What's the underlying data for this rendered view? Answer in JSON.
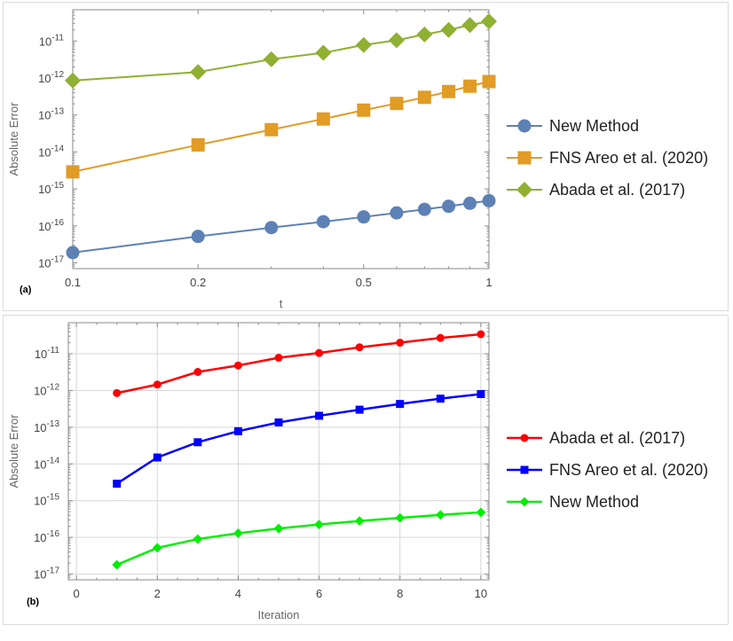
{
  "chart_data": [
    {
      "type": "line",
      "panel_label": "(a)",
      "xlabel": "t",
      "ylabel": "Absolute Error",
      "x_scale": "log",
      "y_scale": "log",
      "xlim": [
        0.1,
        1
      ],
      "ylim": [
        7e-18,
        7e-11
      ],
      "grid": false,
      "legend_position": "right",
      "x_ticks": [
        {
          "value": 0.1,
          "label": "0.1"
        },
        {
          "value": 0.2,
          "label": "0.2"
        },
        {
          "value": 0.5,
          "label": "0.5"
        },
        {
          "value": 1,
          "label": "1"
        }
      ],
      "y_ticks": [
        {
          "exp": -17,
          "base": "10",
          "sup": "-17"
        },
        {
          "exp": -16,
          "base": "10",
          "sup": "-16"
        },
        {
          "exp": -15,
          "base": "10",
          "sup": "-15"
        },
        {
          "exp": -14,
          "base": "10",
          "sup": "-14"
        },
        {
          "exp": -13,
          "base": "10",
          "sup": "-13"
        },
        {
          "exp": -12,
          "base": "10",
          "sup": "-12"
        },
        {
          "exp": -11,
          "base": "10",
          "sup": "-11"
        }
      ],
      "x": [
        0.1,
        0.2,
        0.3,
        0.4,
        0.5,
        0.6,
        0.7,
        0.8,
        0.9,
        1.0
      ],
      "series": [
        {
          "name": "New Method",
          "color": "#5e81b5",
          "marker": "circle",
          "values": [
            1.9e-17,
            5.2e-17,
            9e-17,
            1.3e-16,
            1.75e-16,
            2.25e-16,
            2.8e-16,
            3.4e-16,
            4.1e-16,
            4.8e-16
          ]
        },
        {
          "name": "FNS Areo et al. (2020)",
          "color": "#e19c24",
          "marker": "square",
          "values": [
            2.9e-15,
            1.55e-14,
            4e-14,
            7.8e-14,
            1.35e-13,
            2.05e-13,
            3e-13,
            4.3e-13,
            6e-13,
            8e-13
          ]
        },
        {
          "name": "Abada et al. (2017)",
          "color": "#8fb032",
          "marker": "diamond",
          "values": [
            8.5e-13,
            1.45e-12,
            3.2e-12,
            4.8e-12,
            7.8e-12,
            1.05e-11,
            1.5e-11,
            2e-11,
            2.7e-11,
            3.4e-11
          ]
        }
      ]
    },
    {
      "type": "line",
      "panel_label": "(b)",
      "xlabel": "Iteration",
      "ylabel": "Absolute Error",
      "x_scale": "linear",
      "y_scale": "log",
      "xlim": [
        -0.2,
        10.2
      ],
      "ylim": [
        7e-18,
        7e-11
      ],
      "grid": true,
      "legend_position": "right",
      "x_ticks": [
        {
          "value": 0,
          "label": "0"
        },
        {
          "value": 2,
          "label": "2"
        },
        {
          "value": 4,
          "label": "4"
        },
        {
          "value": 6,
          "label": "6"
        },
        {
          "value": 8,
          "label": "8"
        },
        {
          "value": 10,
          "label": "10"
        }
      ],
      "y_ticks": [
        {
          "exp": -17,
          "base": "10",
          "sup": "-17"
        },
        {
          "exp": -16,
          "base": "10",
          "sup": "-16"
        },
        {
          "exp": -15,
          "base": "10",
          "sup": "-15"
        },
        {
          "exp": -14,
          "base": "10",
          "sup": "-14"
        },
        {
          "exp": -13,
          "base": "10",
          "sup": "-13"
        },
        {
          "exp": -12,
          "base": "10",
          "sup": "-12"
        },
        {
          "exp": -11,
          "base": "10",
          "sup": "-11"
        }
      ],
      "x": [
        1,
        2,
        3,
        4,
        5,
        6,
        7,
        8,
        9,
        10
      ],
      "series": [
        {
          "name": "Abada et al. (2017)",
          "color": "#ff0000",
          "marker": "circle",
          "values": [
            8.5e-13,
            1.45e-12,
            3.2e-12,
            4.8e-12,
            7.8e-12,
            1.05e-11,
            1.5e-11,
            2e-11,
            2.7e-11,
            3.4e-11
          ]
        },
        {
          "name": "FNS Areo et al. (2020)",
          "color": "#0000ff",
          "marker": "square",
          "values": [
            2.9e-15,
            1.5e-14,
            3.9e-14,
            7.8e-14,
            1.35e-13,
            2.05e-13,
            3e-13,
            4.3e-13,
            6e-13,
            8e-13
          ]
        },
        {
          "name": "New Method",
          "color": "#00ee00",
          "marker": "diamond",
          "values": [
            1.8e-17,
            5.2e-17,
            9e-17,
            1.3e-16,
            1.75e-16,
            2.25e-16,
            2.8e-16,
            3.4e-16,
            4.1e-16,
            4.8e-16
          ]
        }
      ]
    }
  ]
}
